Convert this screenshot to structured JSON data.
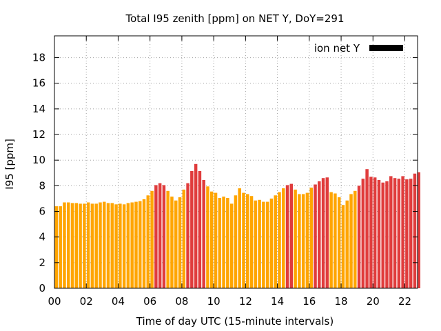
{
  "chart_data": {
    "type": "bar",
    "title": "Total I95 zenith [ppm] on NET Y, DoY=291",
    "xlabel": "Time of day UTC (15-minute intervals)",
    "ylabel": "I95 [ppm]",
    "x_ticks": [
      "00",
      "02",
      "04",
      "06",
      "08",
      "10",
      "12",
      "14",
      "16",
      "18",
      "20",
      "22"
    ],
    "y_ticks": [
      "0",
      "2",
      "4",
      "6",
      "8",
      "10",
      "12",
      "14",
      "16",
      "18"
    ],
    "xlim_hours": [
      0,
      22.8
    ],
    "ylim": [
      0,
      19.7
    ],
    "bar_interval_hours": 0.25,
    "grid": true,
    "legend": {
      "label": "ion net Y",
      "position": "top-right",
      "color": "#000000"
    },
    "threshold": 8.0,
    "colors": {
      "below_threshold": "#ffa500",
      "above_threshold": "#e03c3c"
    },
    "values": [
      6.4,
      6.4,
      6.7,
      6.7,
      6.65,
      6.65,
      6.6,
      6.6,
      6.7,
      6.6,
      6.6,
      6.7,
      6.75,
      6.65,
      6.65,
      6.55,
      6.6,
      6.55,
      6.65,
      6.7,
      6.75,
      6.8,
      6.95,
      7.25,
      7.6,
      8.05,
      8.2,
      8.05,
      7.6,
      7.15,
      6.85,
      7.1,
      7.7,
      8.2,
      9.15,
      9.7,
      9.15,
      8.45,
      7.95,
      7.55,
      7.45,
      7.05,
      7.15,
      7.05,
      6.6,
      7.25,
      7.8,
      7.45,
      7.35,
      7.2,
      6.85,
      6.9,
      6.75,
      6.75,
      7.0,
      7.25,
      7.5,
      7.8,
      8.05,
      8.15,
      7.7,
      7.35,
      7.35,
      7.45,
      7.85,
      8.1,
      8.35,
      8.6,
      8.65,
      7.5,
      7.4,
      7.1,
      6.5,
      6.85,
      7.35,
      7.6,
      8.0,
      8.55,
      9.3,
      8.7,
      8.65,
      8.45,
      8.25,
      8.35,
      8.75,
      8.6,
      8.55,
      8.75,
      8.5,
      8.55,
      8.95,
      9.05
    ]
  }
}
